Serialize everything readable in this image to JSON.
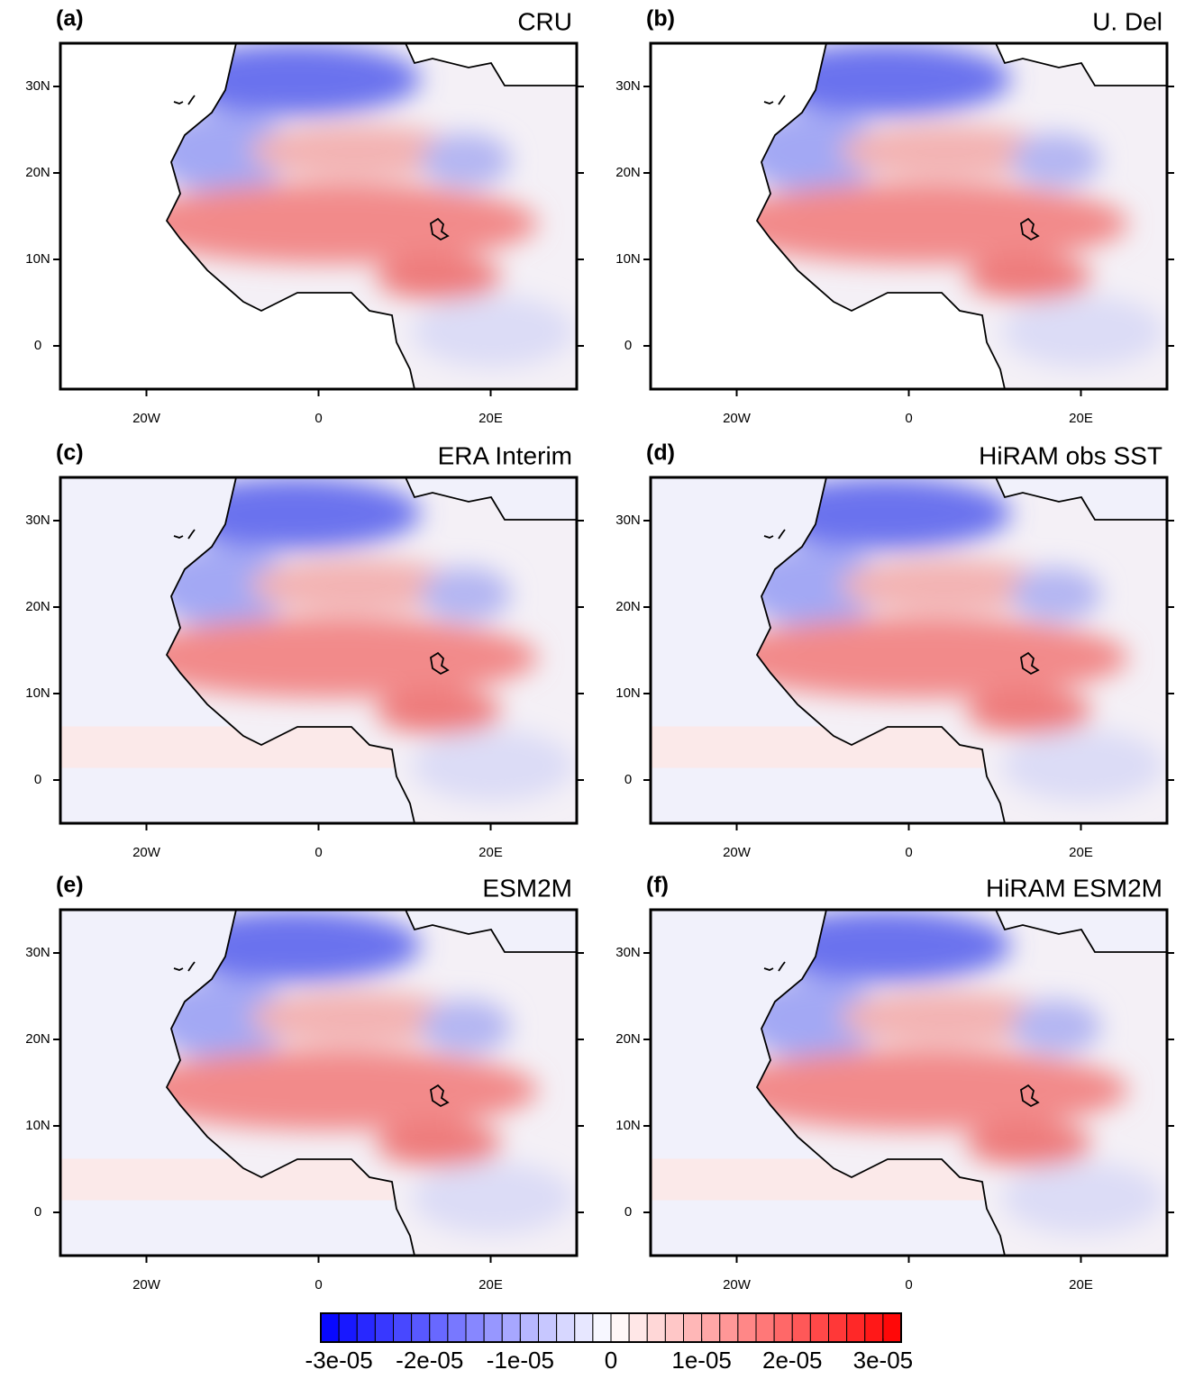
{
  "panels": [
    {
      "label": "(a)",
      "title": "CRU",
      "style": "obs"
    },
    {
      "label": "(b)",
      "title": "U. Del",
      "style": "obs"
    },
    {
      "label": "(c)",
      "title": "ERA Interim",
      "style": "model"
    },
    {
      "label": "(d)",
      "title": "HiRAM obs SST",
      "style": "model"
    },
    {
      "label": "(e)",
      "title": "ESM2M",
      "style": "model"
    },
    {
      "label": "(f)",
      "title": "HiRAM ESM2M",
      "style": "model"
    }
  ],
  "axes": {
    "xlim": [
      -30,
      30
    ],
    "ylim": [
      -5,
      35
    ],
    "xticks": [
      {
        "value": -20,
        "label": "20W"
      },
      0,
      {
        "value": 20,
        "label": "20E"
      }
    ],
    "yticks": [
      0,
      {
        "value": 10,
        "label": "10N"
      },
      {
        "value": 20,
        "label": "20N"
      },
      {
        "value": 30,
        "label": "30N"
      }
    ]
  },
  "colorbar": {
    "range": [
      -3.2e-05,
      3.2e-05
    ],
    "step": 2e-06,
    "colors": [
      "#0000ff",
      "#ffffff",
      "#ff0000"
    ],
    "ticks": [
      {
        "value": -3e-05,
        "label": "-3e-05"
      },
      {
        "value": -2e-05,
        "label": "-2e-05"
      },
      {
        "value": -1e-05,
        "label": "-1e-05"
      },
      0,
      {
        "value": 1e-05,
        "label": "1e-05"
      },
      {
        "value": 2e-05,
        "label": "2e-05"
      },
      {
        "value": 3e-05,
        "label": "3e-05"
      }
    ]
  }
}
